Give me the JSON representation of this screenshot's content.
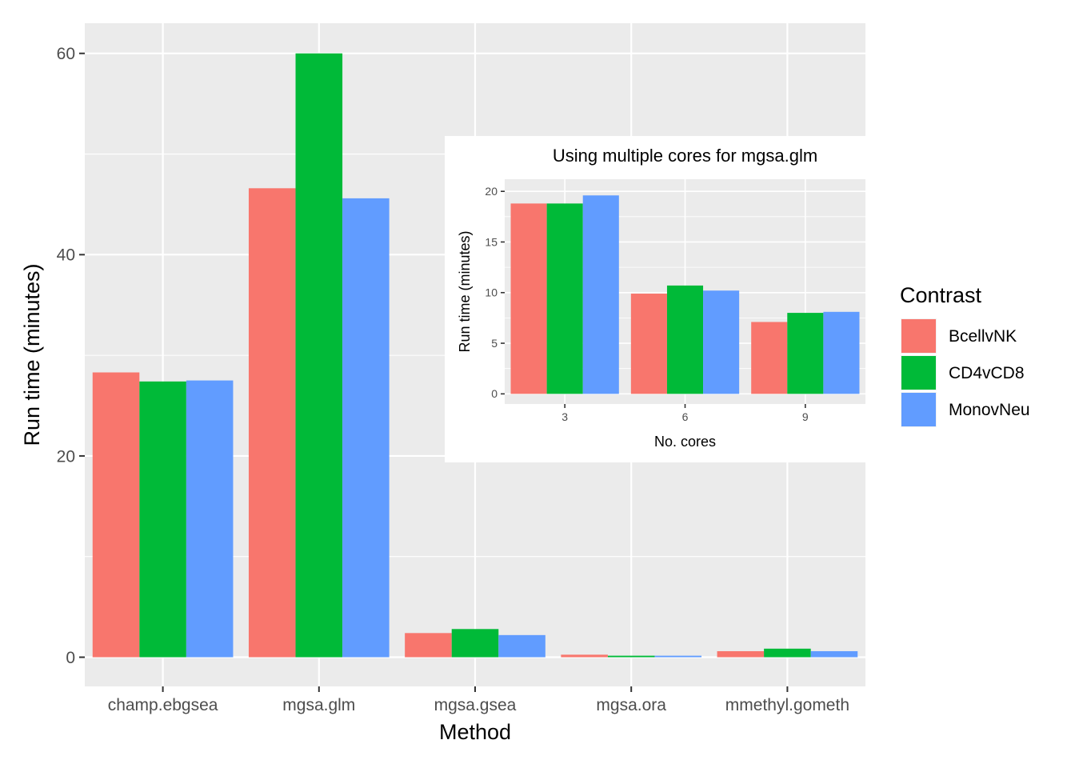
{
  "chart_data": [
    {
      "type": "bar",
      "xlabel": "Method",
      "ylabel": "Run time (minutes)",
      "categories": [
        "champ.ebgsea",
        "mgsa.glm",
        "mgsa.gsea",
        "mgsa.ora",
        "mmethyl.gometh"
      ],
      "yticks": [
        0,
        20,
        40,
        60
      ],
      "ylim": [
        -2.9,
        63
      ],
      "grid": true,
      "legend": {
        "title": "Contrast",
        "position": "right"
      },
      "series": [
        {
          "name": "BcellvNK",
          "color": "#F8766D",
          "values": [
            28.3,
            46.6,
            2.4,
            0.25,
            0.6
          ]
        },
        {
          "name": "CD4vCD8",
          "color": "#00BA38",
          "values": [
            27.4,
            60.0,
            2.8,
            0.15,
            0.85
          ]
        },
        {
          "name": "MonovNeu",
          "color": "#619CFF",
          "values": [
            27.5,
            45.6,
            2.2,
            0.15,
            0.6
          ]
        }
      ]
    },
    {
      "type": "bar",
      "title": "Using multiple cores for mgsa.glm",
      "xlabel": "No. cores",
      "ylabel": "Run time (minutes)",
      "categories": [
        "3",
        "6",
        "9"
      ],
      "yticks": [
        0,
        5,
        10,
        15,
        20
      ],
      "ylim": [
        -1,
        21.2
      ],
      "grid": true,
      "series": [
        {
          "name": "BcellvNK",
          "color": "#F8766D",
          "values": [
            18.8,
            9.9,
            7.1
          ]
        },
        {
          "name": "CD4vCD8",
          "color": "#00BA38",
          "values": [
            18.8,
            10.7,
            8.0
          ]
        },
        {
          "name": "MonovNeu",
          "color": "#619CFF",
          "values": [
            19.6,
            10.2,
            8.1
          ]
        }
      ]
    }
  ]
}
